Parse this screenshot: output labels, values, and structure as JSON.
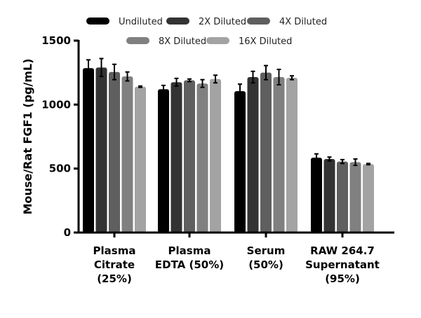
{
  "chart_data": {
    "type": "bar",
    "ylabel": "Mouse/Rat FGF1 (pg/mL)",
    "xlabel": "",
    "ylim": [
      0,
      1500
    ],
    "yticks": [
      0,
      500,
      1000,
      1500
    ],
    "grid": false,
    "legend_position": "top",
    "categories": [
      [
        "Plasma",
        "Citrate",
        "(25%)"
      ],
      [
        "Plasma",
        "EDTA (50%)"
      ],
      [
        "Serum",
        "(50%)"
      ],
      [
        "RAW 264.7",
        "Supernatant",
        "(95%)"
      ]
    ],
    "series": [
      {
        "name": "Undiluted",
        "color": "#000000",
        "values": [
          1285,
          1120,
          1105,
          585
        ],
        "errors": [
          65,
          30,
          55,
          30
        ]
      },
      {
        "name": "2X Diluted",
        "color": "#333333",
        "values": [
          1290,
          1175,
          1215,
          575
        ],
        "errors": [
          70,
          30,
          45,
          15
        ]
      },
      {
        "name": "4X Diluted",
        "color": "#5f5f5f",
        "values": [
          1255,
          1190,
          1250,
          555
        ],
        "errors": [
          60,
          10,
          55,
          15
        ]
      },
      {
        "name": "8X Diluted",
        "color": "#808080",
        "values": [
          1220,
          1165,
          1215,
          550
        ],
        "errors": [
          35,
          30,
          60,
          25
        ]
      },
      {
        "name": "16X Diluted",
        "color": "#a3a3a3",
        "values": [
          1140,
          1200,
          1210,
          535
        ],
        "errors": [
          5,
          30,
          15,
          5
        ]
      }
    ]
  }
}
